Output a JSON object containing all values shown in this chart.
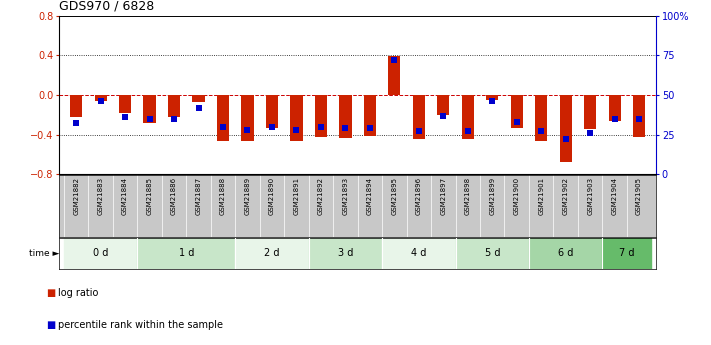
{
  "title": "GDS970 / 6828",
  "samples": [
    "GSM21882",
    "GSM21883",
    "GSM21884",
    "GSM21885",
    "GSM21886",
    "GSM21887",
    "GSM21888",
    "GSM21889",
    "GSM21890",
    "GSM21891",
    "GSM21892",
    "GSM21893",
    "GSM21894",
    "GSM21895",
    "GSM21896",
    "GSM21897",
    "GSM21898",
    "GSM21899",
    "GSM21900",
    "GSM21901",
    "GSM21902",
    "GSM21903",
    "GSM21904",
    "GSM21905"
  ],
  "log_ratio": [
    -0.22,
    -0.06,
    -0.18,
    -0.28,
    -0.22,
    -0.07,
    -0.46,
    -0.46,
    -0.33,
    -0.47,
    -0.42,
    -0.43,
    -0.41,
    0.39,
    -0.44,
    -0.2,
    -0.44,
    -0.05,
    -0.33,
    -0.47,
    -0.68,
    -0.34,
    -0.26,
    -0.42
  ],
  "percentile": [
    32,
    46,
    36,
    35,
    35,
    42,
    30,
    28,
    30,
    28,
    30,
    29,
    29,
    72,
    27,
    37,
    27,
    46,
    33,
    27,
    22,
    26,
    35,
    35
  ],
  "time_groups": [
    {
      "label": "0 d",
      "start": 0,
      "end": 2,
      "color": "#e8f5e9"
    },
    {
      "label": "1 d",
      "start": 3,
      "end": 6,
      "color": "#c8e6c9"
    },
    {
      "label": "2 d",
      "start": 7,
      "end": 9,
      "color": "#e8f5e9"
    },
    {
      "label": "3 d",
      "start": 10,
      "end": 12,
      "color": "#c8e6c9"
    },
    {
      "label": "4 d",
      "start": 13,
      "end": 15,
      "color": "#e8f5e9"
    },
    {
      "label": "5 d",
      "start": 16,
      "end": 18,
      "color": "#c8e6c9"
    },
    {
      "label": "6 d",
      "start": 19,
      "end": 21,
      "color": "#a5d6a7"
    },
    {
      "label": "7 d",
      "start": 22,
      "end": 23,
      "color": "#66bb6a"
    }
  ],
  "ylim_left": [
    -0.8,
    0.8
  ],
  "ylim_right": [
    0,
    100
  ],
  "yticks_left": [
    -0.8,
    -0.4,
    0,
    0.4,
    0.8
  ],
  "yticks_right": [
    0,
    25,
    50,
    75,
    100
  ],
  "bar_color": "#cc2200",
  "point_color": "#0000cc",
  "zero_line_color": "#cc0000",
  "label_bg": "#c8c8c8",
  "fig_width": 7.11,
  "fig_height": 3.45
}
